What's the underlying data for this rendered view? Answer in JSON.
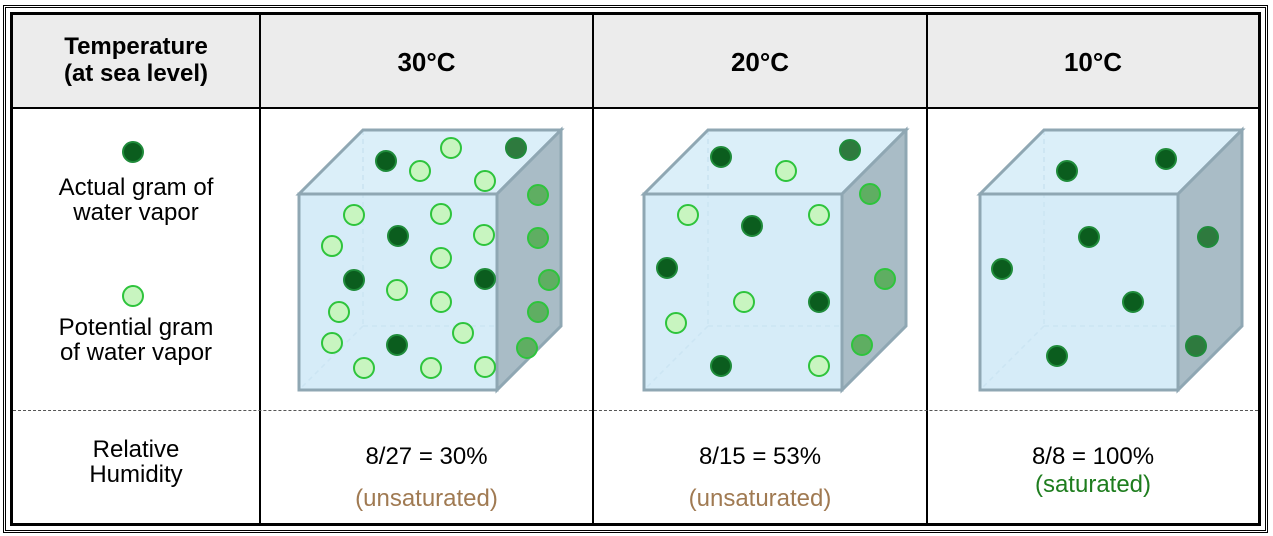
{
  "header": {
    "row_label_line1": "Temperature",
    "row_label_line2": "(at sea level)",
    "columns": [
      "30°C",
      "20°C",
      "10°C"
    ]
  },
  "legend": {
    "actual_line1": "Actual gram of",
    "actual_line2": "water vapor",
    "potential_line1": "Potential gram",
    "potential_line2": "of water vapor"
  },
  "humidity": {
    "label_line1": "Relative",
    "label_line2": "Humidity",
    "cells": [
      {
        "value": "8/27 = 30%",
        "status": "(unsaturated)"
      },
      {
        "value": "8/15 = 53%",
        "status": "(unsaturated)"
      },
      {
        "value": "8/8 = 100%",
        "status": "(saturated)"
      }
    ]
  },
  "colors": {
    "actual_fill": "#0b5d1e",
    "potential_fill": "#c8f5c0",
    "cube_face": "#cfe9f7",
    "cube_side": "#a9bcc6",
    "cube_edge": "#8fa7b3"
  },
  "counts": {
    "actual": [
      8,
      8,
      8
    ],
    "potential": [
      19,
      7,
      0
    ]
  }
}
